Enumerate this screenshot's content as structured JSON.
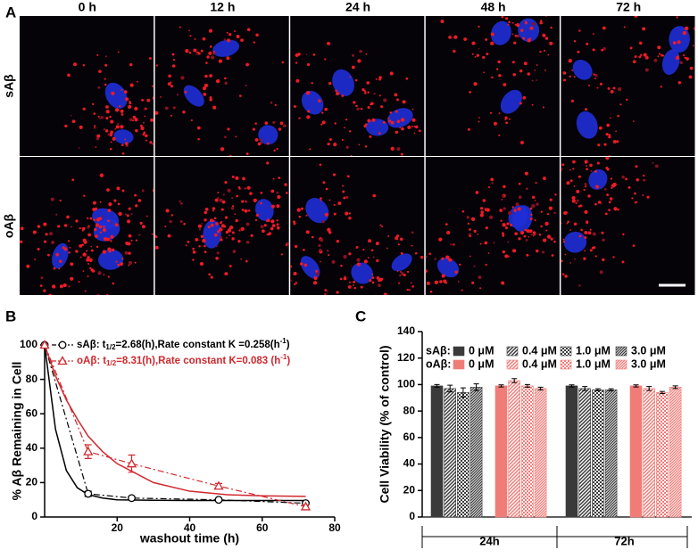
{
  "panels": [
    "A",
    "B",
    "C"
  ],
  "image_grid": {
    "columns": [
      "0 h",
      "12 h",
      "24 h",
      "48 h",
      "72 h"
    ],
    "rows": [
      "sAβ",
      "oAβ"
    ]
  },
  "chart_data": [
    {
      "type": "line",
      "xlabel": "washout time (h)",
      "ylabel": "% Aβ Remaining in Cell",
      "xlim": [
        0,
        80
      ],
      "xticks": [
        20,
        40,
        60,
        80
      ],
      "ylim": [
        0,
        100
      ],
      "yticks": [
        0,
        20,
        40,
        60,
        80,
        100
      ],
      "series": [
        {
          "name": "sAβ:",
          "color": "#000000",
          "marker": "circle",
          "annotation": [
            "t",
            "1/2",
            "=2.68(h),Rate constant K =0.258",
            "(h",
            "-1",
            ")"
          ],
          "x": [
            0,
            12,
            24,
            48,
            72
          ],
          "values": [
            100,
            13.5,
            11,
            10,
            8
          ],
          "errors": [
            0,
            1.5,
            1,
            0.8,
            0.8
          ],
          "fit": {
            "x": [
              0,
              3,
              6,
              9,
              12,
              16,
              20,
              30,
              40,
              50,
              60,
              72
            ],
            "values": [
              100,
              51,
              27,
              17,
              13,
              11,
              10,
              9.7,
              9.6,
              9.6,
              9.6,
              9.6
            ]
          }
        },
        {
          "name": "oAβ:",
          "color": "#d0282e",
          "marker": "triangle",
          "annotation": [
            "t",
            "1/2",
            "=8.31(h),Rate constant K=0.083 ",
            "(h",
            "-1",
            ")"
          ],
          "x": [
            0,
            12,
            24,
            48,
            72
          ],
          "values": [
            100,
            38,
            31,
            18,
            6
          ],
          "errors": [
            0,
            4,
            5,
            1.5,
            1
          ],
          "fit": {
            "x": [
              0,
              3,
              6,
              9,
              12,
              16,
              20,
              30,
              40,
              50,
              60,
              72
            ],
            "values": [
              100,
              82,
              68,
              57,
              47,
              38,
              31,
              20,
              15,
              13,
              12.3,
              12
            ]
          }
        }
      ]
    },
    {
      "type": "bar",
      "ylabel": "Cell Viability (% of control)",
      "categories": [
        "24h",
        "72h"
      ],
      "ylim": [
        0,
        140
      ],
      "yticks": [
        0,
        20,
        40,
        60,
        80,
        100,
        120,
        140
      ],
      "groups": [
        {
          "name": "sAβ:",
          "color": "#3a3a3a",
          "series": [
            {
              "name": "0 μM",
              "fill": "solid",
              "values": [
                99,
                99
              ],
              "errors": [
                1,
                0.8
              ]
            },
            {
              "name": "0.4 μM",
              "fill": "stripes",
              "values": [
                97,
                97
              ],
              "errors": [
                2.5,
                1.5
              ]
            },
            {
              "name": "1.0 μM",
              "fill": "checks",
              "values": [
                94,
                96
              ],
              "errors": [
                3.5,
                0.8
              ]
            },
            {
              "name": "3.0 μM",
              "fill": "stripes-dense",
              "values": [
                98,
                96
              ],
              "errors": [
                2.5,
                0.8
              ]
            }
          ]
        },
        {
          "name": "oAβ:",
          "color": "#f07c78",
          "series": [
            {
              "name": "0 μM",
              "fill": "solid",
              "values": [
                99,
                99
              ],
              "errors": [
                0.8,
                0.8
              ]
            },
            {
              "name": "0.4 μM",
              "fill": "stripes",
              "values": [
                103,
                97
              ],
              "errors": [
                1.5,
                1.5
              ]
            },
            {
              "name": "1.0 μM",
              "fill": "checks",
              "values": [
                99,
                94
              ],
              "errors": [
                1,
                0.8
              ]
            },
            {
              "name": "3.0 μM",
              "fill": "stripes-dense",
              "values": [
                97,
                98
              ],
              "errors": [
                1,
                1
              ]
            }
          ]
        }
      ]
    }
  ]
}
